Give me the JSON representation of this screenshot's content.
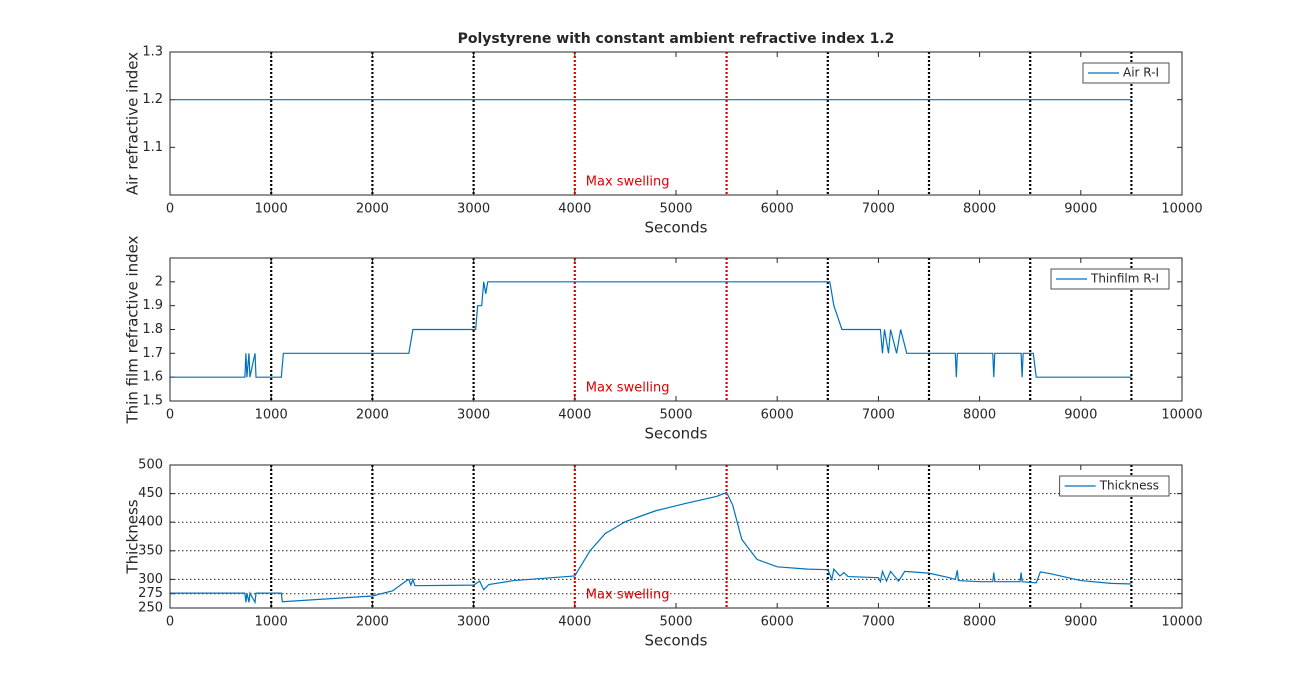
{
  "chart_data": [
    {
      "type": "line",
      "title": "Polystyrene with constant ambient refractive index 1.2",
      "x_label": "Seconds",
      "y_label": "Air refractive index",
      "xlim": [
        0,
        10000
      ],
      "xticks": [
        0,
        1000,
        2000,
        3000,
        4000,
        5000,
        6000,
        7000,
        8000,
        9000,
        10000
      ],
      "ylim": [
        1.0,
        1.3
      ],
      "yticks": [
        1.1,
        1.2,
        1.3
      ],
      "grid": false,
      "legend": "northeast",
      "series": [
        {
          "name": "Air R-I",
          "color": "#0072bd",
          "x": [
            0,
            9500
          ],
          "values": [
            1.2,
            1.2
          ]
        }
      ],
      "vlines": [
        {
          "x": 1000,
          "color": "#000000"
        },
        {
          "x": 2000,
          "color": "#000000"
        },
        {
          "x": 3000,
          "color": "#000000"
        },
        {
          "x": 4000,
          "color": "#dd0000",
          "label": "Max swelling"
        },
        {
          "x": 5500,
          "color": "#dd0000"
        },
        {
          "x": 6500,
          "color": "#000000"
        },
        {
          "x": 7500,
          "color": "#000000"
        },
        {
          "x": 8500,
          "color": "#000000"
        },
        {
          "x": 9500,
          "color": "#000000"
        }
      ]
    },
    {
      "type": "line",
      "x_label": "Seconds",
      "y_label": "Thin film refractive index",
      "xlim": [
        0,
        10000
      ],
      "xticks": [
        0,
        1000,
        2000,
        3000,
        4000,
        5000,
        6000,
        7000,
        8000,
        9000,
        10000
      ],
      "ylim": [
        1.5,
        2.1
      ],
      "yticks": [
        1.5,
        1.6,
        1.7,
        1.8,
        1.9,
        2
      ],
      "grid": false,
      "legend": "northeast",
      "series": [
        {
          "name": "Thinfilm R-I",
          "color": "#0072bd",
          "x": [
            0,
            740,
            750,
            760,
            780,
            790,
            840,
            850,
            1100,
            1120,
            2360,
            2380,
            2400,
            3020,
            3040,
            3080,
            3100,
            3120,
            3140,
            6520,
            6560,
            6600,
            6640,
            7020,
            7040,
            7060,
            7100,
            7120,
            7180,
            7220,
            7280,
            7760,
            7770,
            7780,
            8130,
            8140,
            8150,
            8410,
            8420,
            8430,
            8530,
            8560,
            9500
          ],
          "values": [
            1.6,
            1.6,
            1.7,
            1.6,
            1.7,
            1.6,
            1.7,
            1.6,
            1.6,
            1.7,
            1.7,
            1.75,
            1.8,
            1.8,
            1.9,
            1.9,
            2.0,
            1.95,
            2.0,
            2.0,
            1.9,
            1.85,
            1.8,
            1.8,
            1.7,
            1.8,
            1.7,
            1.8,
            1.7,
            1.8,
            1.7,
            1.7,
            1.6,
            1.7,
            1.7,
            1.6,
            1.7,
            1.7,
            1.6,
            1.7,
            1.7,
            1.6,
            1.6
          ]
        }
      ],
      "vlines": [
        {
          "x": 1000,
          "color": "#000000"
        },
        {
          "x": 2000,
          "color": "#000000"
        },
        {
          "x": 3000,
          "color": "#000000"
        },
        {
          "x": 4000,
          "color": "#dd0000",
          "label": "Max swelling"
        },
        {
          "x": 5500,
          "color": "#dd0000"
        },
        {
          "x": 6500,
          "color": "#000000"
        },
        {
          "x": 7500,
          "color": "#000000"
        },
        {
          "x": 8500,
          "color": "#000000"
        },
        {
          "x": 9500,
          "color": "#000000"
        }
      ]
    },
    {
      "type": "line",
      "x_label": "Seconds",
      "y_label": "Thickness",
      "xlim": [
        0,
        10000
      ],
      "xticks": [
        0,
        1000,
        2000,
        3000,
        4000,
        5000,
        6000,
        7000,
        8000,
        9000,
        10000
      ],
      "ylim": [
        250,
        500
      ],
      "yticks": [
        250,
        275,
        300,
        350,
        400,
        450,
        500
      ],
      "grid": true,
      "legend": "northeast",
      "series": [
        {
          "name": "Thickness",
          "color": "#0072bd",
          "x": [
            0,
            740,
            750,
            760,
            780,
            790,
            840,
            850,
            1100,
            1110,
            2000,
            2200,
            2330,
            2360,
            2380,
            2400,
            2420,
            3000,
            3060,
            3100,
            3150,
            3400,
            4000,
            4150,
            4300,
            4500,
            4800,
            5100,
            5400,
            5500,
            5560,
            5650,
            5800,
            6000,
            6300,
            6500,
            6540,
            6560,
            6620,
            6660,
            6700,
            7000,
            7020,
            7040,
            7080,
            7120,
            7200,
            7260,
            7500,
            7700,
            7760,
            7780,
            7790,
            8000,
            8130,
            8140,
            8150,
            8400,
            8410,
            8420,
            8560,
            8600,
            8700,
            9000,
            9300,
            9500
          ],
          "values": [
            276,
            276,
            260,
            276,
            260,
            276,
            260,
            276,
            276,
            261,
            271,
            280,
            297,
            300,
            290,
            300,
            289,
            290,
            297,
            282,
            291,
            298,
            306,
            350,
            380,
            401,
            420,
            433,
            445,
            452,
            430,
            370,
            335,
            322,
            318,
            317,
            300,
            318,
            306,
            312,
            305,
            303,
            296,
            314,
            297,
            314,
            297,
            314,
            311,
            303,
            300,
            316,
            298,
            296,
            296,
            312,
            296,
            296,
            312,
            296,
            294,
            313,
            310,
            298,
            293,
            292
          ]
        }
      ],
      "vlines": [
        {
          "x": 1000,
          "color": "#000000"
        },
        {
          "x": 2000,
          "color": "#000000"
        },
        {
          "x": 3000,
          "color": "#000000"
        },
        {
          "x": 4000,
          "color": "#dd0000",
          "label": "Max swelling"
        },
        {
          "x": 5500,
          "color": "#dd0000"
        },
        {
          "x": 6500,
          "color": "#000000"
        },
        {
          "x": 7500,
          "color": "#000000"
        },
        {
          "x": 8500,
          "color": "#000000"
        },
        {
          "x": 9500,
          "color": "#000000"
        }
      ]
    }
  ]
}
